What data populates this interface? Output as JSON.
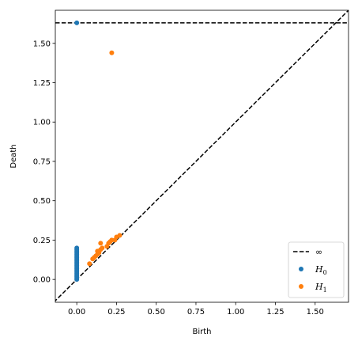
{
  "chart_data": {
    "type": "scatter",
    "title": "",
    "xlabel": "Birth",
    "ylabel": "Death",
    "xlim": [
      -0.135,
      1.71
    ],
    "ylim": [
      -0.145,
      1.71
    ],
    "xticks": [
      0.0,
      0.25,
      0.5,
      0.75,
      1.0,
      1.25,
      1.5
    ],
    "xtick_labels": [
      "0.00",
      "0.25",
      "0.50",
      "0.75",
      "1.00",
      "1.25",
      "1.50"
    ],
    "yticks": [
      0.0,
      0.25,
      0.5,
      0.75,
      1.0,
      1.25,
      1.5
    ],
    "ytick_labels": [
      "0.00",
      "0.25",
      "0.50",
      "0.75",
      "1.00",
      "1.25",
      "1.50"
    ],
    "grid": false,
    "legend_position": "lower-right",
    "infinity_level": 1.63,
    "infinity_label": "∞",
    "diagonal": true,
    "series": [
      {
        "name": "H0",
        "label_base": "H",
        "label_sub": "0",
        "color": "#1f77b4",
        "points": [
          [
            0,
            1.63
          ],
          [
            0,
            0.0
          ],
          [
            0,
            0.01
          ],
          [
            0,
            0.02
          ],
          [
            0,
            0.03
          ],
          [
            0,
            0.04
          ],
          [
            0,
            0.05
          ],
          [
            0,
            0.06
          ],
          [
            0,
            0.07
          ],
          [
            0,
            0.08
          ],
          [
            0,
            0.09
          ],
          [
            0,
            0.1
          ],
          [
            0,
            0.11
          ],
          [
            0,
            0.12
          ],
          [
            0,
            0.13
          ],
          [
            0,
            0.14
          ],
          [
            0,
            0.15
          ],
          [
            0,
            0.16
          ],
          [
            0,
            0.17
          ],
          [
            0,
            0.18
          ],
          [
            0,
            0.19
          ],
          [
            0,
            0.2
          ]
        ]
      },
      {
        "name": "H1",
        "label_base": "H",
        "label_sub": "1",
        "color": "#ff7f0e",
        "points": [
          [
            0.22,
            1.44
          ],
          [
            0.08,
            0.1
          ],
          [
            0.1,
            0.13
          ],
          [
            0.11,
            0.14
          ],
          [
            0.12,
            0.15
          ],
          [
            0.13,
            0.16
          ],
          [
            0.13,
            0.18
          ],
          [
            0.14,
            0.17
          ],
          [
            0.15,
            0.19
          ],
          [
            0.15,
            0.23
          ],
          [
            0.16,
            0.2
          ],
          [
            0.19,
            0.21
          ],
          [
            0.2,
            0.23
          ],
          [
            0.21,
            0.24
          ],
          [
            0.22,
            0.25
          ],
          [
            0.24,
            0.25
          ],
          [
            0.25,
            0.27
          ],
          [
            0.27,
            0.28
          ]
        ]
      }
    ]
  }
}
